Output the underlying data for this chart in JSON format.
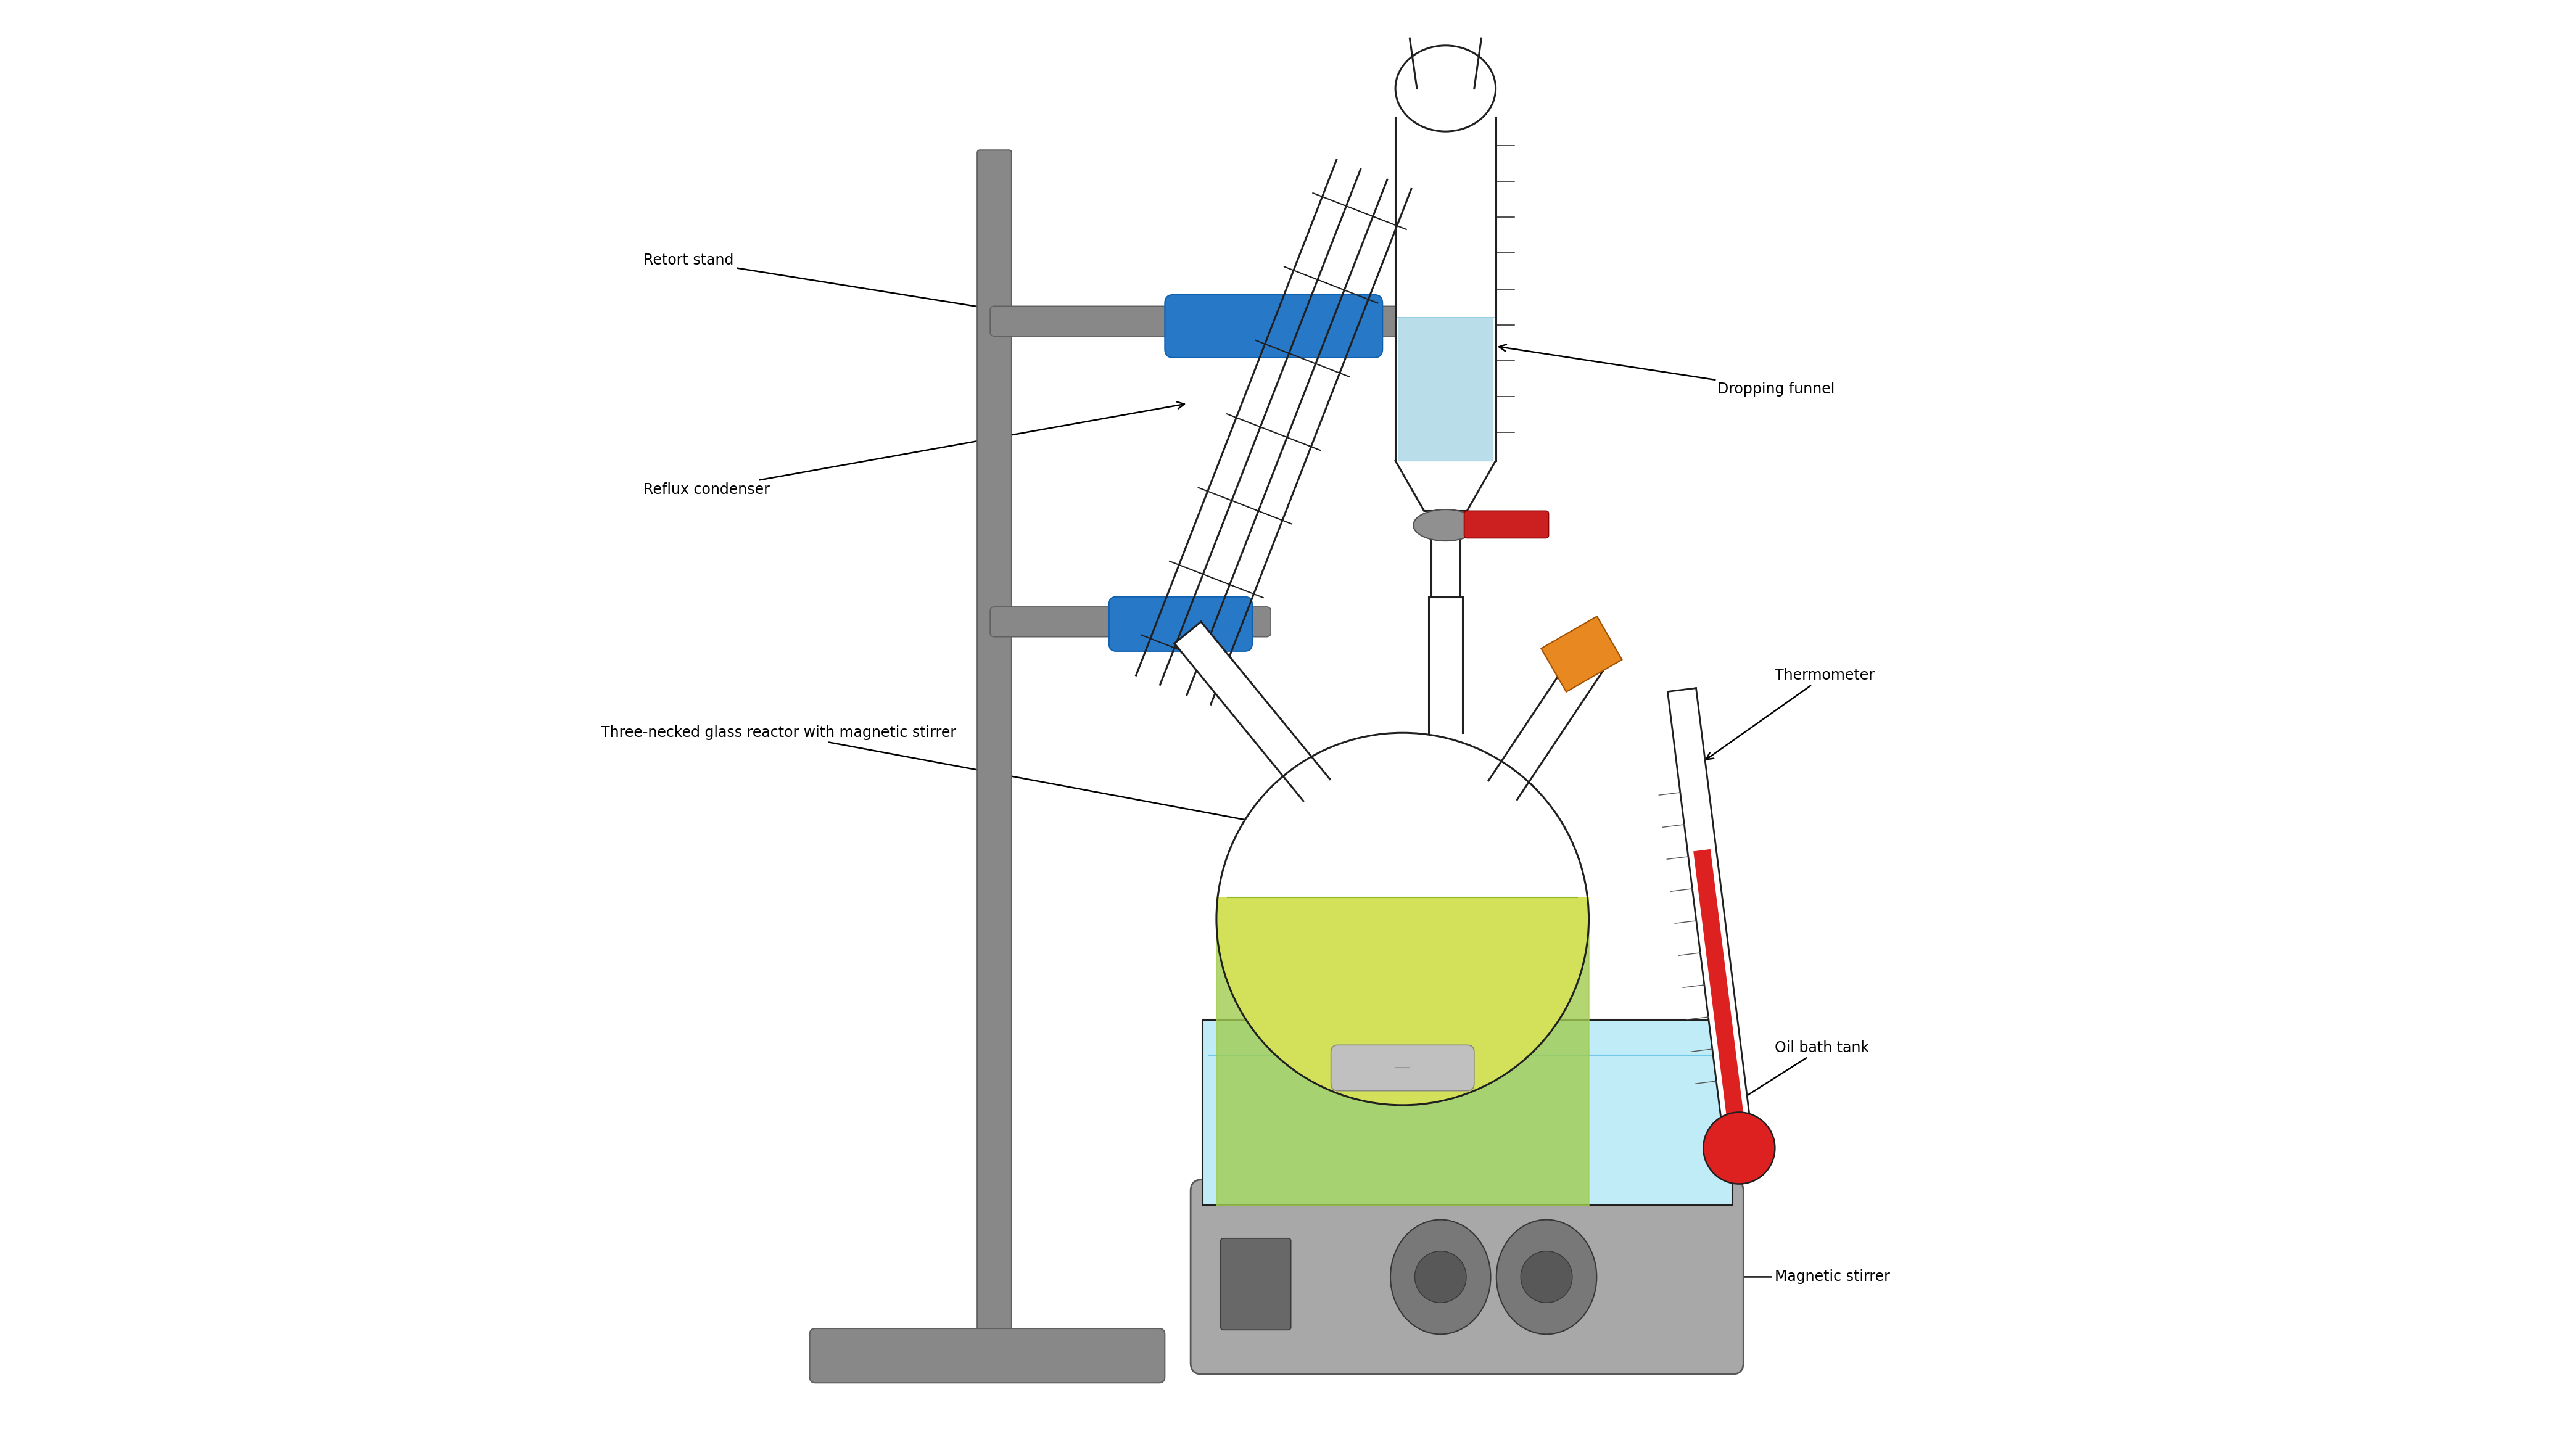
{
  "background_color": "#ffffff",
  "fig_width": 41.76,
  "fig_height": 23.3,
  "labels": {
    "retort_stand": "Retort stand",
    "dropping_funnel": "Dropping funnel",
    "reflux_condenser": "Reflux condenser",
    "three_necked": "Three-necked glass reactor with magnetic stirrer",
    "thermometer": "Thermometer",
    "oil_bath": "Oil bath tank",
    "magnetic_stirrer": "Magnetic stirrer"
  },
  "colors": {
    "stand_gray": "#888888",
    "dark_gray": "#606060",
    "blue_clamp": "#2878C8",
    "light_blue_liquid": "#ADD8E6",
    "yellow_green_liquid": "#D0E050",
    "light_green": "#A0CC50",
    "oil_bath_blue": "#C0ECF8",
    "orange_stopper": "#E88820",
    "red_valve": "#CC2020",
    "red_thermometer_liquid": "#DD2020",
    "flask_outline": "#202020",
    "stirrer_bar": "#C0C0C0",
    "arrow_color": "#000000",
    "text_color": "#000000"
  }
}
